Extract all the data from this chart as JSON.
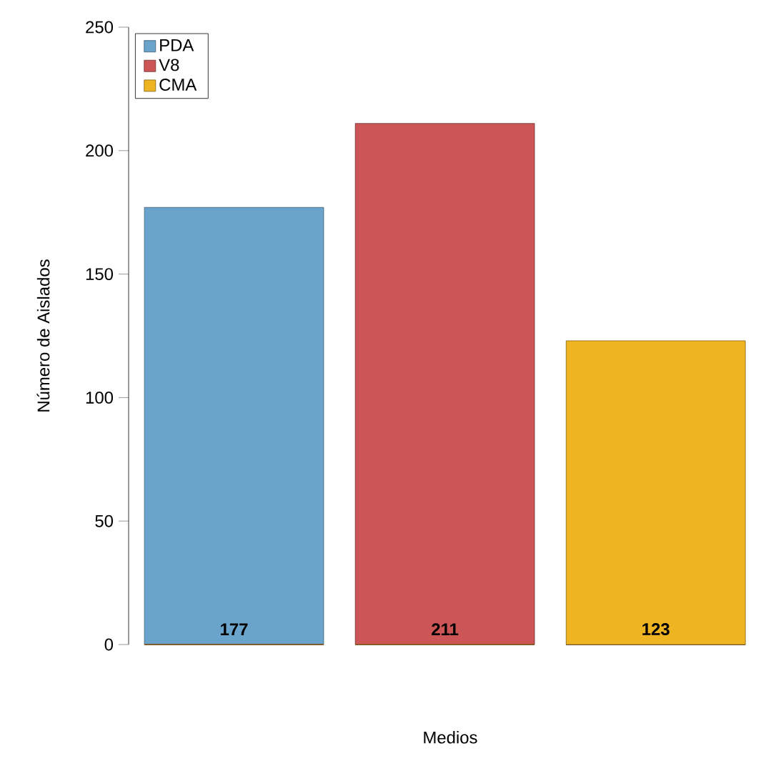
{
  "chart_data": {
    "type": "bar",
    "xlabel": "Medios",
    "ylabel": "Número de Aislados",
    "categories": [
      null,
      null,
      null
    ],
    "stacked": true,
    "series": [
      {
        "name": "PDA",
        "color": "#6aa3cc",
        "values": [
          177,
          null,
          null
        ]
      },
      {
        "name": "V8",
        "color": "#cc5555",
        "values": [
          null,
          211,
          null
        ]
      },
      {
        "name": "CMA",
        "color": "#eeb422",
        "values": [
          null,
          null,
          123
        ]
      }
    ],
    "ylim": [
      0,
      250
    ],
    "yticks": [
      0,
      50,
      100,
      150,
      200,
      250
    ],
    "legend": "top left",
    "tick_labels": "y",
    "data_labels": true
  }
}
